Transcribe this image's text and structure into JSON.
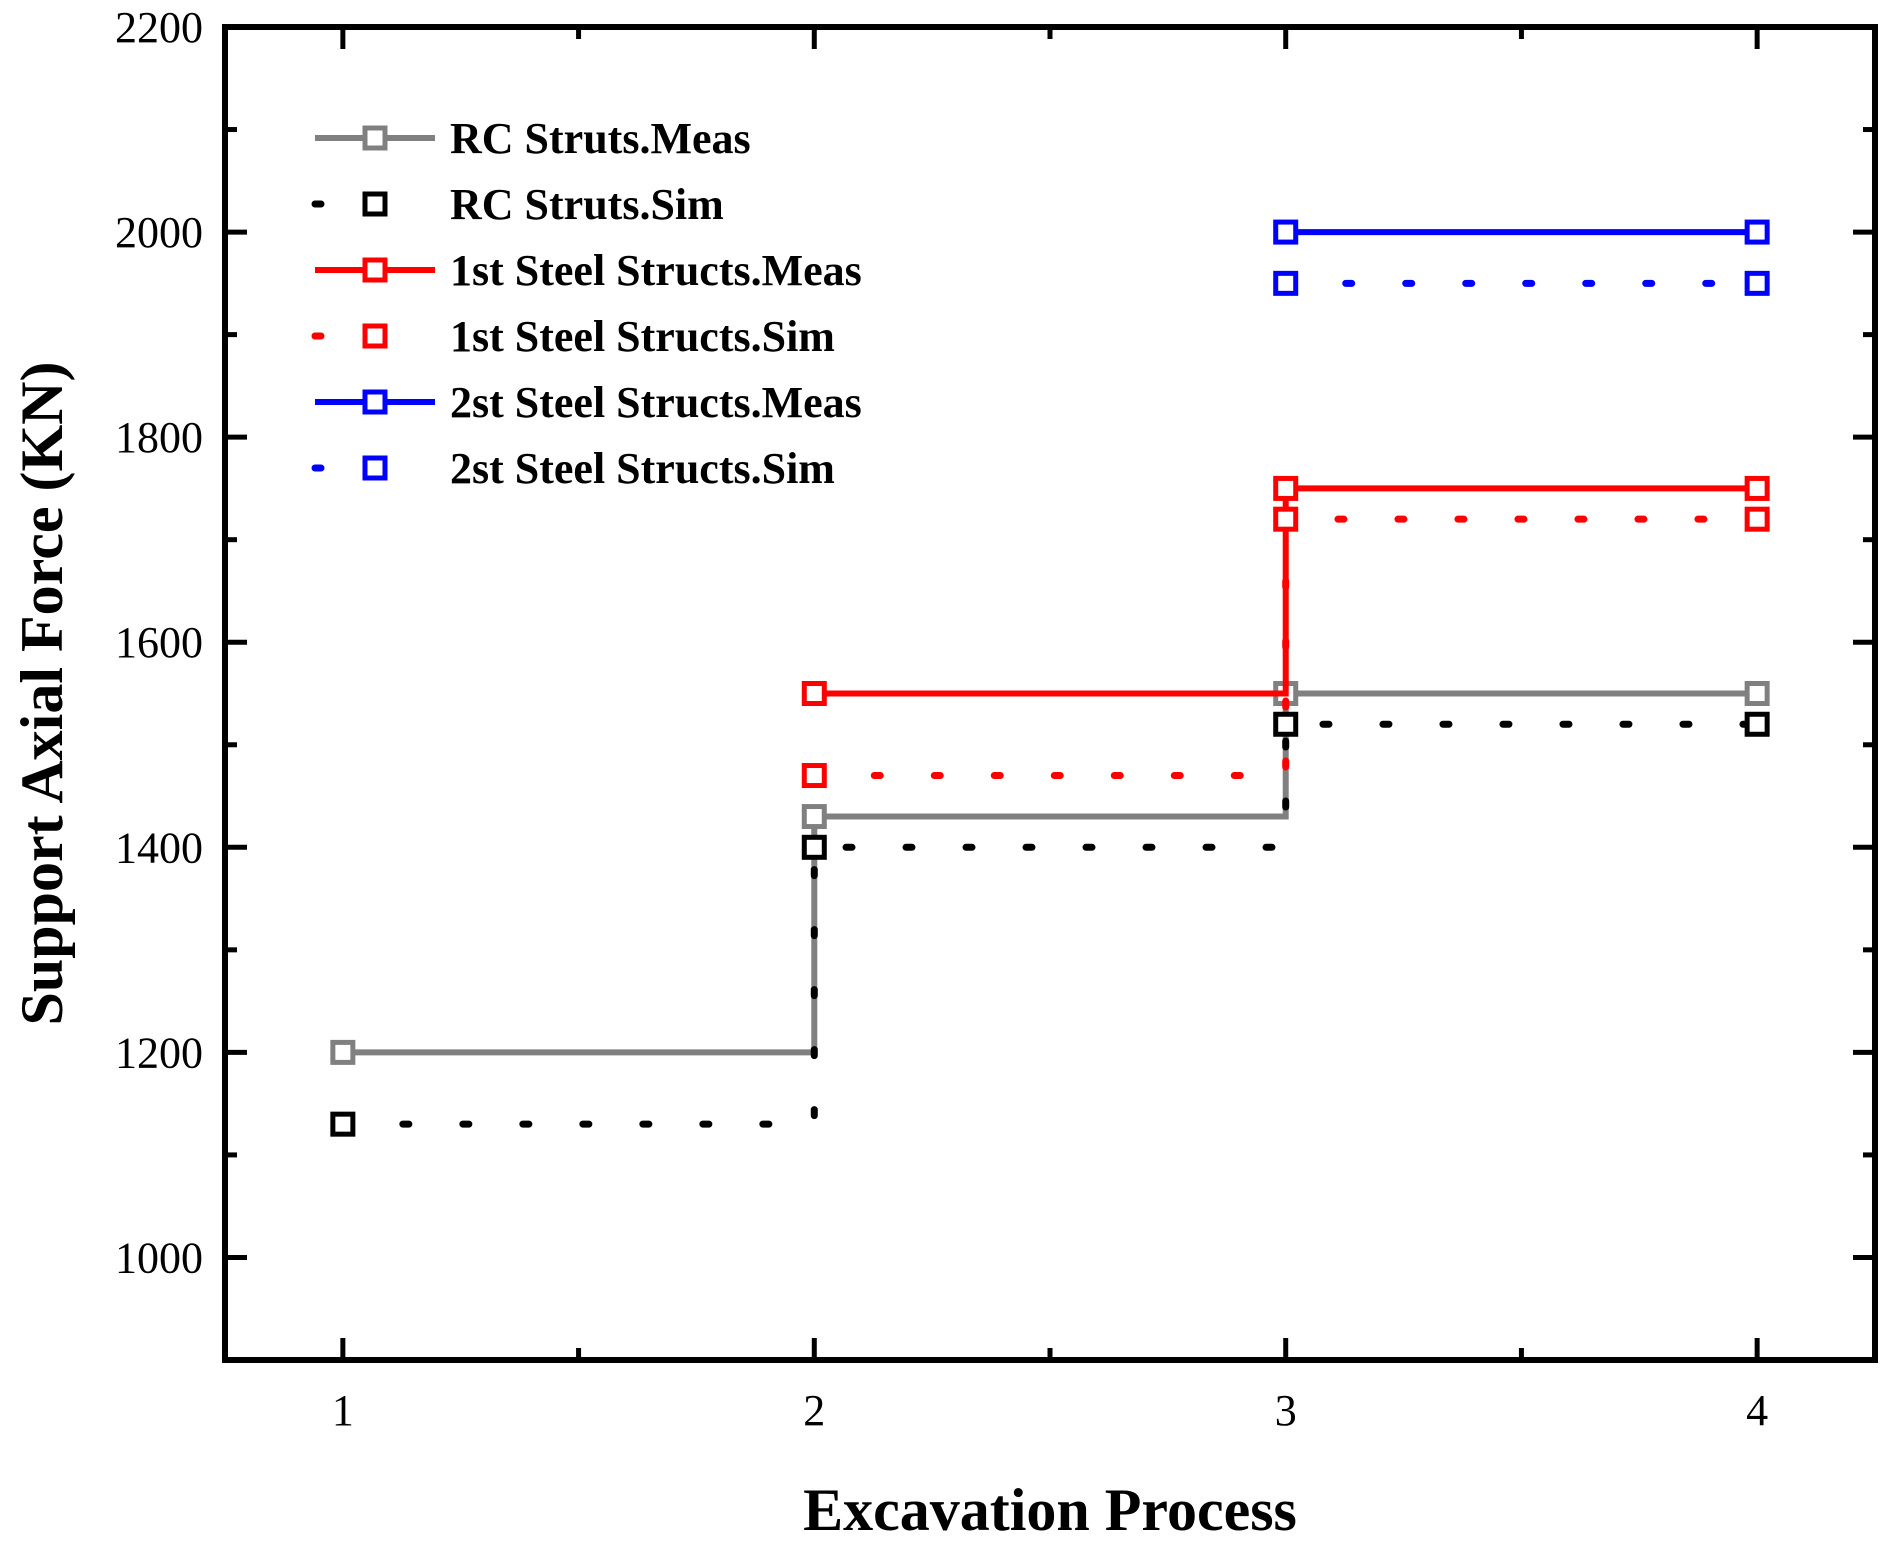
{
  "chart_data": {
    "type": "line",
    "title": "",
    "xlabel": "Excavation Process",
    "ylabel": "Support Axial Force (KN)",
    "xlim": [
      0.75,
      4.25
    ],
    "ylim": [
      900,
      2200
    ],
    "xticks": [
      1,
      2,
      3,
      4
    ],
    "yticks": [
      1000,
      1200,
      1400,
      1600,
      1800,
      2000,
      2200
    ],
    "grid": false,
    "legend_position": "top-left",
    "step": true,
    "series": [
      {
        "name": "RC Struts.Meas",
        "color": "#808080",
        "dash": "solid",
        "x": [
          1,
          2,
          3,
          4
        ],
        "values": [
          1200,
          1430,
          1550,
          1550
        ]
      },
      {
        "name": "RC Struts.Sim",
        "color": "#000000",
        "dash": "dot",
        "x": [
          1,
          2,
          3,
          4
        ],
        "values": [
          1130,
          1400,
          1520,
          1520
        ]
      },
      {
        "name": "1st Steel Structs.Meas",
        "color": "#ff0000",
        "dash": "solid",
        "x": [
          2,
          3,
          4
        ],
        "values": [
          1550,
          1750,
          1750
        ]
      },
      {
        "name": "1st Steel Structs.Sim",
        "color": "#ff0000",
        "dash": "dot",
        "x": [
          2,
          3,
          4
        ],
        "values": [
          1470,
          1720,
          1720
        ]
      },
      {
        "name": "2st Steel Structs.Meas",
        "color": "#0000ff",
        "dash": "solid",
        "x": [
          3,
          4
        ],
        "values": [
          2000,
          2000
        ]
      },
      {
        "name": "2st Steel Structs.Sim",
        "color": "#0000ff",
        "dash": "dot",
        "x": [
          3,
          4
        ],
        "values": [
          1950,
          1950
        ]
      }
    ]
  }
}
